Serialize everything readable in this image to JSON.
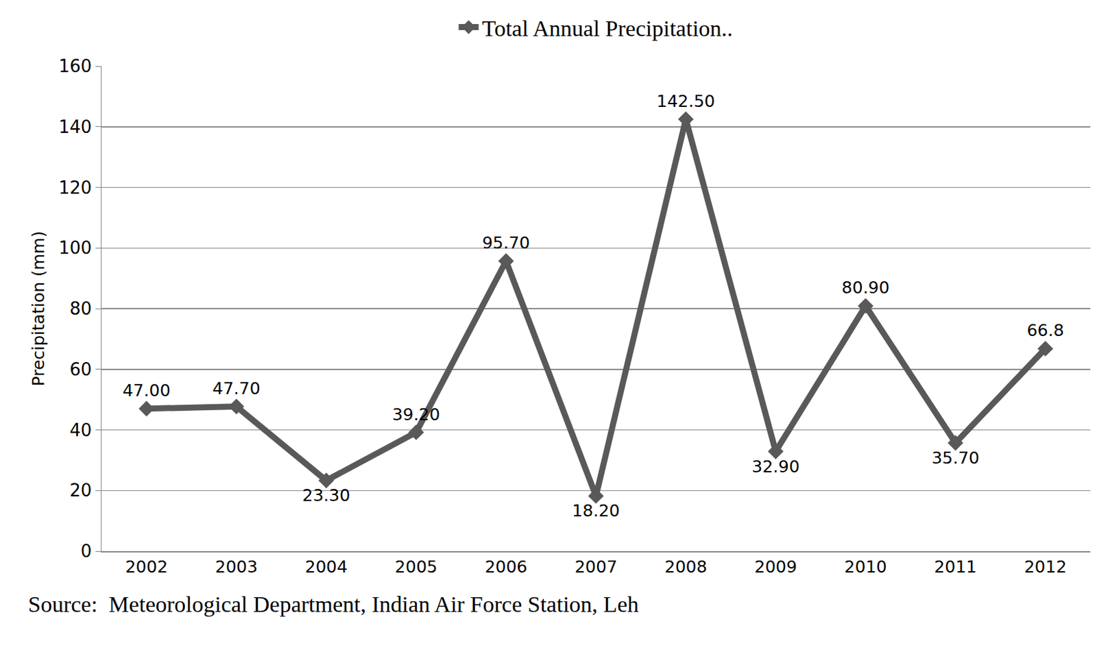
{
  "chart_data": {
    "type": "line",
    "y_label": "Precipitation (mm)",
    "categories": [
      "2002",
      "2003",
      "2004",
      "2005",
      "2006",
      "2007",
      "2008",
      "2009",
      "2010",
      "2011",
      "2012"
    ],
    "series": [
      {
        "name": "Total Annual Precipitation..",
        "color": "#595959",
        "values": [
          47.0,
          47.7,
          23.3,
          39.2,
          95.7,
          18.2,
          142.5,
          32.9,
          80.9,
          35.7,
          66.8
        ],
        "value_labels": [
          "47.00",
          "47.70",
          "23.30",
          "39.20",
          "95.70",
          "18.20",
          "142.50",
          "32.90",
          "80.90",
          "35.70",
          "66.8"
        ]
      }
    ],
    "ylim": [
      0,
      160
    ],
    "yticks": [
      0,
      20,
      40,
      60,
      80,
      100,
      120,
      140,
      160
    ],
    "grid": true,
    "legend": "top",
    "data_labels": true,
    "marker": "diamond",
    "line_style": "solid",
    "annotations": [
      "Source:  Meteorological Department, Indian Air Force Station, Leh"
    ]
  }
}
